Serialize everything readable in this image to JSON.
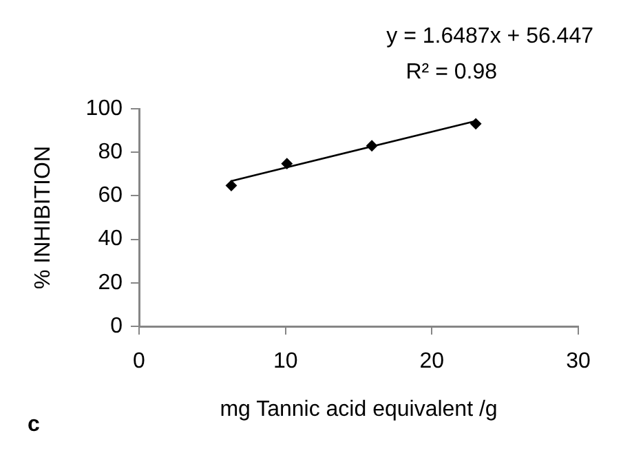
{
  "chart_data": {
    "type": "scatter",
    "xlabel": "mg Tannic acid equivalent /g",
    "ylabel": "% INHIBITION",
    "annotations": [
      "y = 1.6487x + 56.447",
      "R² = 0.98",
      "c"
    ],
    "series": [
      {
        "color": "#000000",
        "marker": "diamond",
        "x": [
          6.3,
          10.1,
          15.9,
          23.0
        ],
        "values": [
          64.7,
          74.8,
          83.0,
          93.1
        ]
      },
      {
        "type": "line",
        "color": "#000000",
        "marker": "none",
        "line_style": "solid",
        "x": [
          6.3,
          23.0
        ],
        "values": [
          66.8,
          94.4
        ]
      }
    ],
    "xlim": [
      0,
      30
    ],
    "xticks": [
      0,
      10,
      20,
      30
    ],
    "ylim": [
      0,
      100
    ],
    "yticks": [
      0,
      20,
      40,
      60,
      80,
      100
    ],
    "grid": false,
    "legend": false
  }
}
